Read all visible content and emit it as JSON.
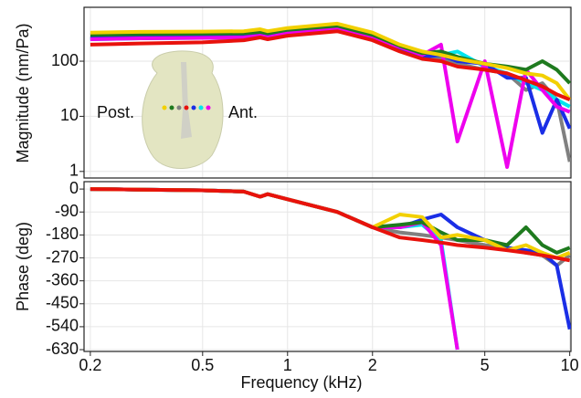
{
  "chart_data": [
    {
      "type": "line",
      "ylabel": "Magnitude (nm/Pa)",
      "yscale": "log",
      "xscale": "log",
      "grid": true,
      "x": [
        0.2,
        0.3,
        0.5,
        0.7,
        0.8,
        0.85,
        1,
        1.5,
        2,
        2.5,
        3,
        3.5,
        4,
        5,
        6,
        7,
        8,
        9,
        10
      ],
      "xlim": [
        0.19,
        10.1
      ],
      "ylim": [
        0.76,
        950
      ],
      "yticks": [
        1,
        10,
        100
      ],
      "annotations": [
        "Post.",
        "Ant."
      ],
      "series": [
        {
          "color": "#808080",
          "values": [
            260,
            270,
            275,
            280,
            300,
            280,
            330,
            400,
            270,
            160,
            120,
            110,
            90,
            70,
            60,
            30,
            40,
            20,
            1.5
          ]
        },
        {
          "color": "#00e5ee",
          "values": [
            250,
            260,
            265,
            270,
            290,
            270,
            320,
            390,
            260,
            160,
            120,
            130,
            150,
            80,
            60,
            40,
            30,
            20,
            15
          ]
        },
        {
          "color": "#1a2ee6",
          "values": [
            260,
            270,
            275,
            280,
            300,
            280,
            330,
            400,
            270,
            170,
            120,
            130,
            100,
            90,
            50,
            50,
            5,
            20,
            6
          ]
        },
        {
          "color": "#ee00ee",
          "values": [
            250,
            260,
            265,
            270,
            290,
            270,
            320,
            390,
            260,
            180,
            130,
            200,
            3.5,
            100,
            1.2,
            70,
            30,
            15,
            12
          ]
        },
        {
          "color": "#1e7a1e",
          "values": [
            300,
            310,
            315,
            320,
            340,
            320,
            370,
            440,
            300,
            190,
            140,
            150,
            120,
            90,
            80,
            70,
            100,
            70,
            40
          ]
        },
        {
          "color": "#f2d000",
          "values": [
            330,
            340,
            345,
            350,
            380,
            350,
            400,
            480,
            330,
            200,
            150,
            130,
            110,
            90,
            75,
            60,
            55,
            40,
            20
          ]
        },
        {
          "color": "#e8120c",
          "values": [
            200,
            210,
            220,
            240,
            270,
            250,
            290,
            350,
            240,
            150,
            110,
            100,
            80,
            70,
            60,
            45,
            35,
            25,
            20
          ]
        }
      ]
    },
    {
      "type": "line",
      "ylabel": "Phase (deg)",
      "xlabel": "Frequency (kHz)",
      "xscale": "log",
      "grid": true,
      "x": [
        0.2,
        0.3,
        0.5,
        0.7,
        0.8,
        0.85,
        1,
        1.5,
        2,
        2.5,
        3,
        3.5,
        4,
        5,
        6,
        7,
        8,
        9,
        10
      ],
      "xlim": [
        0.19,
        10.1
      ],
      "ylim": [
        -637,
        29
      ],
      "xticks": [
        0.2,
        0.5,
        1,
        2,
        5,
        10
      ],
      "yticks": [
        0,
        -90,
        -180,
        -270,
        -360,
        -450,
        -540,
        -630
      ],
      "series": [
        {
          "color": "#808080",
          "values": [
            0,
            -2,
            -5,
            -10,
            -30,
            -20,
            -40,
            -90,
            -150,
            -170,
            -180,
            -190,
            -200,
            -220,
            -230,
            -250,
            -260,
            -300,
            -260
          ]
        },
        {
          "color": "#00e5ee",
          "values": [
            0,
            -2,
            -5,
            -10,
            -30,
            -20,
            -40,
            -90,
            -150,
            -150,
            -140,
            -200,
            -630,
            null,
            null,
            null,
            null,
            null,
            null
          ]
        },
        {
          "color": "#1a2ee6",
          "values": [
            0,
            -2,
            -5,
            -10,
            -30,
            -20,
            -40,
            -90,
            -150,
            -150,
            -120,
            -100,
            -150,
            -200,
            -230,
            -240,
            -250,
            -300,
            -550
          ]
        },
        {
          "color": "#ee00ee",
          "values": [
            0,
            -2,
            -5,
            -10,
            -30,
            -20,
            -40,
            -90,
            -150,
            -150,
            -130,
            -220,
            -630,
            null,
            null,
            null,
            null,
            null,
            null
          ]
        },
        {
          "color": "#1e7a1e",
          "values": [
            0,
            -2,
            -5,
            -10,
            -30,
            -20,
            -40,
            -90,
            -150,
            -140,
            -130,
            -170,
            -200,
            -200,
            -220,
            -150,
            -220,
            -250,
            -230
          ]
        },
        {
          "color": "#f2d000",
          "values": [
            0,
            -2,
            -5,
            -10,
            -30,
            -20,
            -40,
            -90,
            -150,
            -100,
            -110,
            -190,
            -180,
            -200,
            -240,
            -220,
            -250,
            -270,
            -250
          ]
        },
        {
          "color": "#e8120c",
          "values": [
            0,
            -2,
            -5,
            -10,
            -30,
            -20,
            -40,
            -90,
            -150,
            -190,
            -200,
            -210,
            -220,
            -230,
            -240,
            -250,
            -260,
            -270,
            -280
          ]
        }
      ]
    }
  ]
}
